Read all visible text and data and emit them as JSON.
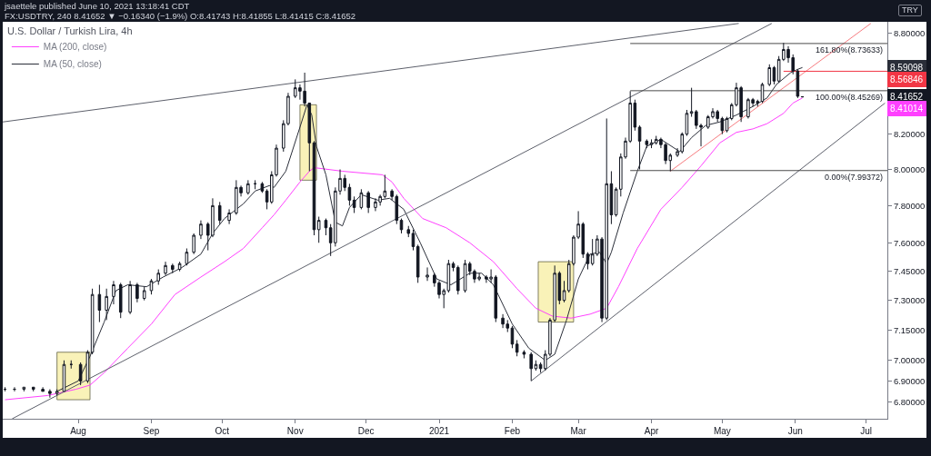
{
  "chart_data": {
    "type": "candlestick",
    "title": "U.S. Dollar / Turkish Lira, 4h",
    "ylabel": "TRY",
    "annotations": [
      "jsaettele published June 10, 2021 13:18:41 CDT",
      "FX:USDTRY, 240 8.41652 ▼ −0.16340 (−1.9%) O:8.41743 H:8.41855 L:8.41415 C:8.41652",
      {
        "text": "161.80%(8.73633)",
        "x": "2021-07-09",
        "y": 8.73633
      },
      {
        "text": "100.00%(8.45269)",
        "x": "2021-07-09",
        "y": 8.45269
      },
      {
        "text": "0.00%(7.99372)",
        "x": "2021-07-09",
        "y": 7.99372
      },
      "8.59098",
      "8.56846",
      "8.41652",
      "8.41014"
    ],
    "xlim": [
      "2020-06-30",
      "2021-07-10"
    ],
    "xticks": [
      {
        "value": "2020-08-01",
        "label": "Aug"
      },
      {
        "value": "2020-09-01",
        "label": "Sep"
      },
      {
        "value": "2020-10-01",
        "label": "Oct"
      },
      {
        "value": "2020-11-01",
        "label": "Nov"
      },
      {
        "value": "2020-12-01",
        "label": "Dec"
      },
      {
        "value": "2021-01-01",
        "label": "2021"
      },
      {
        "value": "2021-02-01",
        "label": "Feb"
      },
      {
        "value": "2021-03-01",
        "label": "Mar"
      },
      {
        "value": "2021-04-01",
        "label": "Apr"
      },
      {
        "value": "2021-05-01",
        "label": "May"
      },
      {
        "value": "2021-06-01",
        "label": "Jun"
      },
      {
        "value": "2021-07-01",
        "label": "Jul"
      }
    ],
    "ylim": [
      6.72,
      8.87
    ],
    "yticks": [
      {
        "value": 6.8,
        "label": "6.80000"
      },
      {
        "value": 6.9,
        "label": "6.90000"
      },
      {
        "value": 7,
        "label": "7.00000"
      },
      {
        "value": 7.15,
        "label": "7.15000"
      },
      {
        "value": 7.3,
        "label": "7.30000"
      },
      {
        "value": 7.45,
        "label": "7.45000"
      },
      {
        "value": 7.6,
        "label": "7.60000"
      },
      {
        "value": 7.8,
        "label": "7.80000"
      },
      {
        "value": 8,
        "label": "8.00000"
      },
      {
        "value": 8.2,
        "label": "8.20000"
      },
      {
        "value": 8.8,
        "label": "8.80000"
      }
    ],
    "log": true,
    "legend": "top left",
    "series": [
      {
        "type": "area",
        "color": "#f8efa6",
        "x": [
          "2020-07-23",
          "2020-08-06",
          "2020-08-06",
          "2020-07-23",
          "2020-07-23"
        ],
        "values": [
          6.81,
          6.81,
          7.04,
          7.04,
          6.81
        ]
      },
      {
        "type": "area",
        "color": "#f8efa6",
        "x": [
          "2020-11-03",
          "2020-11-10",
          "2020-11-10",
          "2020-11-03",
          "2020-11-03"
        ],
        "values": [
          7.94,
          7.94,
          8.37,
          8.37,
          7.94
        ]
      },
      {
        "type": "area",
        "color": "#f8efa6",
        "x": [
          "2021-02-12",
          "2021-02-27",
          "2021-02-27",
          "2021-02-12",
          "2021-02-12"
        ],
        "values": [
          7.19,
          7.19,
          7.5,
          7.5,
          7.19
        ]
      },
      {
        "type": "line",
        "name": "MA (200, close)",
        "color": "#ff40ff",
        "x": [
          "2020-07-01",
          "2020-07-19",
          "2020-07-31",
          "2020-08-06",
          "2020-08-12",
          "2020-08-22",
          "2020-09-01",
          "2020-09-11",
          "2020-09-22",
          "2020-10-02",
          "2020-10-10",
          "2020-10-18",
          "2020-10-23",
          "2020-10-28",
          "2020-11-03",
          "2020-11-07",
          "2020-11-09",
          "2020-11-21",
          "2020-12-08",
          "2020-12-12",
          "2020-12-17",
          "2020-12-25",
          "2021-01-04",
          "2021-01-14",
          "2021-01-24",
          "2021-02-03",
          "2021-02-11",
          "2021-02-18",
          "2021-02-26",
          "2021-03-06",
          "2021-03-13",
          "2021-03-18",
          "2021-03-26",
          "2021-04-05",
          "2021-04-14",
          "2021-04-22",
          "2021-04-30",
          "2021-05-07",
          "2021-05-14",
          "2021-05-20",
          "2021-05-27",
          "2021-05-31",
          "2021-06-04"
        ],
        "values": [
          6.81,
          6.83,
          6.86,
          6.88,
          6.94,
          7.06,
          7.18,
          7.33,
          7.42,
          7.5,
          7.57,
          7.68,
          7.75,
          7.83,
          7.93,
          7.99,
          8.01,
          7.99,
          7.97,
          7.93,
          7.84,
          7.73,
          7.68,
          7.6,
          7.5,
          7.36,
          7.26,
          7.22,
          7.21,
          7.23,
          7.26,
          7.37,
          7.57,
          7.78,
          7.9,
          8.02,
          8.15,
          8.21,
          8.23,
          8.26,
          8.32,
          8.38,
          8.41014
        ]
      },
      {
        "type": "line",
        "name": "MA (50, close)",
        "color": "#2a2e39",
        "x": [
          "2020-07-23",
          "2020-08-01",
          "2020-08-06",
          "2020-08-12",
          "2020-08-17",
          "2020-08-22",
          "2020-08-30",
          "2020-09-06",
          "2020-09-14",
          "2020-09-22",
          "2020-09-27",
          "2020-10-02",
          "2020-10-10",
          "2020-10-15",
          "2020-10-21",
          "2020-10-23",
          "2020-10-28",
          "2020-11-03",
          "2020-11-06",
          "2020-11-08",
          "2020-11-10",
          "2020-11-14",
          "2020-11-18",
          "2020-11-21",
          "2020-11-24",
          "2020-11-29",
          "2020-12-06",
          "2020-12-11",
          "2020-12-17",
          "2020-12-24",
          "2020-12-31",
          "2021-01-06",
          "2021-01-14",
          "2021-01-19",
          "2021-01-24",
          "2021-02-01",
          "2021-02-08",
          "2021-02-15",
          "2021-02-19",
          "2021-02-24",
          "2021-03-01",
          "2021-03-06",
          "2021-03-10",
          "2021-03-13",
          "2021-03-15",
          "2021-03-20",
          "2021-03-26",
          "2021-03-30",
          "2021-04-05",
          "2021-04-13",
          "2021-04-18",
          "2021-04-24",
          "2021-04-30",
          "2021-05-07",
          "2021-05-14",
          "2021-05-20",
          "2021-05-24",
          "2021-05-30",
          "2021-06-02",
          "2021-06-04"
        ],
        "values": [
          6.85,
          6.9,
          7.02,
          7.19,
          7.35,
          7.38,
          7.37,
          7.42,
          7.47,
          7.54,
          7.65,
          7.73,
          7.81,
          7.88,
          7.91,
          7.9,
          7.99,
          8.24,
          8.37,
          8.31,
          8.13,
          7.97,
          7.71,
          7.69,
          7.79,
          7.86,
          7.83,
          7.84,
          7.78,
          7.6,
          7.41,
          7.38,
          7.44,
          7.44,
          7.38,
          7.18,
          7.06,
          7,
          7.03,
          7.2,
          7.41,
          7.54,
          7.55,
          7.49,
          7.55,
          7.76,
          7.99,
          8.13,
          8.17,
          8.1,
          8.18,
          8.25,
          8.27,
          8.31,
          8.36,
          8.41,
          8.49,
          8.56,
          8.58,
          8.59098
        ]
      },
      {
        "type": "line",
        "color": "#5d606b",
        "x": [
          "2020-06-30",
          "2021-05-08"
        ],
        "values": [
          8.27,
          8.86
        ]
      },
      {
        "type": "line",
        "color": "#5d606b",
        "x": [
          "2020-07-04",
          "2021-05-22"
        ],
        "values": [
          6.72,
          8.86
        ]
      },
      {
        "type": "line",
        "color": "#5d606b",
        "x": [
          "2021-02-09",
          "2021-07-09"
        ],
        "values": [
          6.9,
          8.38
        ]
      },
      {
        "type": "line",
        "color": "#f77c80",
        "x": [
          "2021-04-09",
          "2021-07-03"
        ],
        "values": [
          7.99,
          8.86
        ]
      },
      {
        "type": "line",
        "color": "#f23645",
        "x": [
          "2021-05-27",
          "2021-07-10"
        ],
        "values": [
          8.56846,
          8.56846
        ]
      },
      {
        "type": "line",
        "color": "#4a4a4a",
        "x": [
          "2021-03-23",
          "2021-07-10"
        ],
        "values": [
          8.73633,
          8.73633
        ]
      },
      {
        "type": "line",
        "color": "#4a4a4a",
        "x": [
          "2021-03-23",
          "2021-07-10"
        ],
        "values": [
          8.45269,
          8.45269
        ]
      },
      {
        "type": "line",
        "color": "#4a4a4a",
        "x": [
          "2021-03-23",
          "2021-07-10"
        ],
        "values": [
          7.99372,
          7.99372
        ]
      },
      {
        "color": "#131722",
        "x": [
          "2020-07-01",
          "2020-07-05",
          "2020-07-09",
          "2020-07-13",
          "2020-07-17",
          "2020-07-20",
          "2020-07-23",
          "2020-07-26",
          "2020-07-29",
          "2020-08-02",
          "2020-08-05",
          "2020-08-07",
          "2020-08-10",
          "2020-08-13",
          "2020-08-16",
          "2020-08-19",
          "2020-08-23",
          "2020-08-26",
          "2020-08-29",
          "2020-09-01",
          "2020-09-04",
          "2020-09-07",
          "2020-09-10",
          "2020-09-13",
          "2020-09-16",
          "2020-09-19",
          "2020-09-22",
          "2020-09-25",
          "2020-09-27",
          "2020-09-30",
          "2020-10-04",
          "2020-10-07",
          "2020-10-09",
          "2020-10-12",
          "2020-10-15",
          "2020-10-18",
          "2020-10-20",
          "2020-10-22",
          "2020-10-24",
          "2020-10-27",
          "2020-10-29",
          "2020-11-01",
          "2020-11-03",
          "2020-11-05",
          "2020-11-07",
          "2020-11-09",
          "2020-11-11",
          "2020-11-14",
          "2020-11-16",
          "2020-11-18",
          "2020-11-20",
          "2020-11-22",
          "2020-11-24",
          "2020-11-26",
          "2020-11-29",
          "2020-12-02",
          "2020-12-05",
          "2020-12-07",
          "2020-12-09",
          "2020-12-12",
          "2020-12-14",
          "2020-12-16",
          "2020-12-19",
          "2020-12-21",
          "2020-12-23",
          "2020-12-27",
          "2020-12-30",
          "2021-01-01",
          "2021-01-03",
          "2021-01-05",
          "2021-01-07",
          "2021-01-09",
          "2021-01-12",
          "2021-01-14",
          "2021-01-16",
          "2021-01-18",
          "2021-01-21",
          "2021-01-23",
          "2021-01-25",
          "2021-01-28",
          "2021-01-30",
          "2021-02-01",
          "2021-02-03",
          "2021-02-06",
          "2021-02-09",
          "2021-02-11",
          "2021-02-13",
          "2021-02-15",
          "2021-02-17",
          "2021-02-19",
          "2021-02-21",
          "2021-02-23",
          "2021-02-25",
          "2021-02-27",
          "2021-03-01",
          "2021-03-03",
          "2021-03-05",
          "2021-03-07",
          "2021-03-09",
          "2021-03-11",
          "2021-03-13",
          "2021-03-15",
          "2021-03-17",
          "2021-03-19",
          "2021-03-21",
          "2021-03-23",
          "2021-03-25",
          "2021-03-27",
          "2021-03-30",
          "2021-04-01",
          "2021-04-03",
          "2021-04-05",
          "2021-04-07",
          "2021-04-09",
          "2021-04-12",
          "2021-04-14",
          "2021-04-16",
          "2021-04-18",
          "2021-04-20",
          "2021-04-22",
          "2021-04-25",
          "2021-04-27",
          "2021-04-29",
          "2021-05-01",
          "2021-05-03",
          "2021-05-05",
          "2021-05-07",
          "2021-05-09",
          "2021-05-12",
          "2021-05-14",
          "2021-05-16",
          "2021-05-18",
          "2021-05-21",
          "2021-05-23",
          "2021-05-25",
          "2021-05-27",
          "2021-05-29",
          "2021-05-31",
          "2021-06-02",
          "2021-06-04"
        ],
        "ohlc": [
          [
            6.86,
            6.87,
            6.85,
            6.86
          ],
          [
            6.86,
            6.87,
            6.85,
            6.86
          ],
          [
            6.86,
            6.87,
            6.85,
            6.87
          ],
          [
            6.87,
            6.87,
            6.85,
            6.86
          ],
          [
            6.86,
            6.87,
            6.85,
            6.85
          ],
          [
            6.85,
            6.86,
            6.82,
            6.84
          ],
          [
            6.84,
            6.86,
            6.83,
            6.85
          ],
          [
            6.85,
            7.0,
            6.85,
            6.98
          ],
          [
            6.98,
            7.0,
            6.96,
            6.98
          ],
          [
            6.98,
            6.99,
            6.88,
            6.9
          ],
          [
            6.9,
            7.05,
            6.89,
            7.04
          ],
          [
            7.04,
            7.36,
            7.03,
            7.33
          ],
          [
            7.33,
            7.38,
            7.19,
            7.25
          ],
          [
            7.25,
            7.36,
            7.2,
            7.32
          ],
          [
            7.32,
            7.4,
            7.28,
            7.38
          ],
          [
            7.38,
            7.39,
            7.21,
            7.24
          ],
          [
            7.24,
            7.4,
            7.23,
            7.38
          ],
          [
            7.38,
            7.39,
            7.29,
            7.31
          ],
          [
            7.31,
            7.37,
            7.3,
            7.35
          ],
          [
            7.35,
            7.41,
            7.33,
            7.4
          ],
          [
            7.4,
            7.46,
            7.38,
            7.44
          ],
          [
            7.44,
            7.5,
            7.43,
            7.48
          ],
          [
            7.48,
            7.49,
            7.44,
            7.46
          ],
          [
            7.46,
            7.5,
            7.45,
            7.49
          ],
          [
            7.49,
            7.57,
            7.48,
            7.55
          ],
          [
            7.55,
            7.65,
            7.54,
            7.64
          ],
          [
            7.64,
            7.72,
            7.62,
            7.7
          ],
          [
            7.7,
            7.71,
            7.56,
            7.64
          ],
          [
            7.64,
            7.84,
            7.63,
            7.8
          ],
          [
            7.8,
            7.82,
            7.7,
            7.72
          ],
          [
            7.72,
            7.78,
            7.7,
            7.76
          ],
          [
            7.76,
            7.94,
            7.75,
            7.9
          ],
          [
            7.9,
            7.91,
            7.85,
            7.87
          ],
          [
            7.87,
            7.94,
            7.86,
            7.92
          ],
          [
            7.92,
            7.94,
            7.89,
            7.92
          ],
          [
            7.92,
            7.93,
            7.87,
            7.88
          ],
          [
            7.88,
            7.89,
            7.78,
            7.82
          ],
          [
            7.82,
            7.99,
            7.81,
            7.97
          ],
          [
            7.97,
            8.14,
            7.96,
            8.12
          ],
          [
            8.12,
            8.28,
            8.1,
            8.26
          ],
          [
            8.26,
            8.44,
            8.25,
            8.42
          ],
          [
            8.42,
            8.52,
            8.41,
            8.47
          ],
          [
            8.47,
            8.49,
            8.4,
            8.45
          ],
          [
            8.45,
            8.56,
            8.36,
            8.38
          ],
          [
            8.38,
            8.38,
            7.99,
            8.15
          ],
          [
            8.15,
            8.16,
            7.64,
            7.67
          ],
          [
            7.67,
            7.74,
            7.6,
            7.72
          ],
          [
            7.72,
            7.73,
            7.64,
            7.68
          ],
          [
            7.68,
            7.7,
            7.53,
            7.6
          ],
          [
            7.6,
            7.9,
            7.58,
            7.88
          ],
          [
            7.88,
            8.0,
            7.86,
            7.95
          ],
          [
            7.95,
            7.97,
            7.88,
            7.9
          ],
          [
            7.9,
            7.92,
            7.8,
            7.83
          ],
          [
            7.83,
            7.85,
            7.76,
            7.79
          ],
          [
            7.79,
            7.89,
            7.78,
            7.87
          ],
          [
            7.87,
            7.88,
            7.76,
            7.79
          ],
          [
            7.79,
            7.84,
            7.77,
            7.82
          ],
          [
            7.82,
            7.86,
            7.8,
            7.85
          ],
          [
            7.85,
            7.97,
            7.84,
            7.88
          ],
          [
            7.88,
            7.89,
            7.83,
            7.85
          ],
          [
            7.85,
            7.86,
            7.7,
            7.72
          ],
          [
            7.72,
            7.73,
            7.65,
            7.67
          ],
          [
            7.67,
            7.69,
            7.63,
            7.65
          ],
          [
            7.65,
            7.67,
            7.56,
            7.58
          ],
          [
            7.58,
            7.59,
            7.39,
            7.42
          ],
          [
            7.42,
            7.47,
            7.4,
            7.43
          ],
          [
            7.43,
            7.44,
            7.37,
            7.39
          ],
          [
            7.39,
            7.4,
            7.31,
            7.33
          ],
          [
            7.33,
            7.36,
            7.26,
            7.35
          ],
          [
            7.35,
            7.51,
            7.34,
            7.49
          ],
          [
            7.49,
            7.5,
            7.45,
            7.47
          ],
          [
            7.47,
            7.48,
            7.33,
            7.35
          ],
          [
            7.35,
            7.51,
            7.34,
            7.49
          ],
          [
            7.49,
            7.5,
            7.43,
            7.45
          ],
          [
            7.45,
            7.46,
            7.39,
            7.41
          ],
          [
            7.41,
            7.44,
            7.4,
            7.42
          ],
          [
            7.42,
            7.43,
            7.39,
            7.41
          ],
          [
            7.41,
            7.46,
            7.39,
            7.42
          ],
          [
            7.42,
            7.43,
            7.19,
            7.21
          ],
          [
            7.21,
            7.23,
            7.16,
            7.18
          ],
          [
            7.18,
            7.2,
            7.14,
            7.16
          ],
          [
            7.16,
            7.17,
            7.06,
            7.08
          ],
          [
            7.08,
            7.1,
            7.02,
            7.04
          ],
          [
            7.04,
            7.05,
            7.01,
            7.03
          ],
          [
            7.03,
            7.04,
            6.9,
            6.96
          ],
          [
            6.96,
            7.0,
            6.95,
            6.98
          ],
          [
            6.98,
            6.99,
            6.94,
            6.96
          ],
          [
            6.96,
            7.05,
            6.95,
            7.03
          ],
          [
            7.03,
            7.21,
            7.02,
            7.2
          ],
          [
            7.2,
            7.48,
            7.19,
            7.44
          ],
          [
            7.44,
            7.45,
            7.28,
            7.3
          ],
          [
            7.3,
            7.4,
            7.29,
            7.35
          ],
          [
            7.35,
            7.51,
            7.34,
            7.49
          ],
          [
            7.49,
            7.64,
            7.48,
            7.63
          ],
          [
            7.63,
            7.77,
            7.62,
            7.7
          ],
          [
            7.7,
            7.71,
            7.52,
            7.54
          ],
          [
            7.54,
            7.55,
            7.46,
            7.49
          ],
          [
            7.49,
            7.62,
            7.48,
            7.54
          ],
          [
            7.54,
            7.64,
            7.53,
            7.62
          ],
          [
            7.62,
            7.63,
            7.19,
            7.21
          ],
          [
            7.21,
            8.29,
            7.2,
            7.92
          ],
          [
            7.92,
            7.99,
            7.7,
            7.75
          ],
          [
            7.75,
            7.9,
            7.74,
            7.89
          ],
          [
            7.89,
            8.09,
            7.85,
            8.07
          ],
          [
            8.07,
            8.18,
            8.06,
            8.16
          ],
          [
            8.16,
            8.45,
            8.15,
            8.38
          ],
          [
            8.38,
            8.4,
            8.22,
            8.24
          ],
          [
            8.24,
            8.25,
            8.0,
            8.16
          ],
          [
            8.16,
            8.17,
            8.12,
            8.14
          ],
          [
            8.14,
            8.17,
            8.12,
            8.15
          ],
          [
            8.15,
            8.19,
            8.14,
            8.17
          ],
          [
            8.17,
            8.18,
            8.12,
            8.14
          ],
          [
            8.14,
            8.15,
            8.03,
            8.05
          ],
          [
            8.05,
            8.09,
            7.99,
            8.08
          ],
          [
            8.08,
            8.12,
            8.07,
            8.1
          ],
          [
            8.1,
            8.21,
            8.09,
            8.2
          ],
          [
            8.2,
            8.34,
            8.19,
            8.32
          ],
          [
            8.32,
            8.47,
            8.3,
            8.33
          ],
          [
            8.33,
            8.34,
            8.23,
            8.25
          ],
          [
            8.25,
            8.26,
            8.13,
            8.24
          ],
          [
            8.24,
            8.31,
            8.23,
            8.3
          ],
          [
            8.3,
            8.35,
            8.29,
            8.33
          ],
          [
            8.33,
            8.34,
            8.27,
            8.29
          ],
          [
            8.29,
            8.3,
            8.2,
            8.22
          ],
          [
            8.22,
            8.3,
            8.21,
            8.29
          ],
          [
            8.29,
            8.38,
            8.28,
            8.37
          ],
          [
            8.37,
            8.5,
            8.36,
            8.47
          ],
          [
            8.47,
            8.48,
            8.27,
            8.3
          ],
          [
            8.3,
            8.41,
            8.29,
            8.4
          ],
          [
            8.4,
            8.41,
            8.36,
            8.38
          ],
          [
            8.38,
            8.4,
            8.36,
            8.39
          ],
          [
            8.39,
            8.5,
            8.38,
            8.49
          ],
          [
            8.49,
            8.61,
            8.48,
            8.59
          ],
          [
            8.59,
            8.6,
            8.49,
            8.51
          ],
          [
            8.51,
            8.66,
            8.5,
            8.64
          ],
          [
            8.64,
            8.74,
            8.63,
            8.7
          ],
          [
            8.7,
            8.72,
            8.62,
            8.65
          ],
          [
            8.65,
            8.67,
            8.55,
            8.57
          ],
          [
            8.57,
            8.58,
            8.41,
            8.42
          ],
          [
            8.41743,
            8.41855,
            8.41415,
            8.41652
          ]
        ]
      }
    ]
  }
}
